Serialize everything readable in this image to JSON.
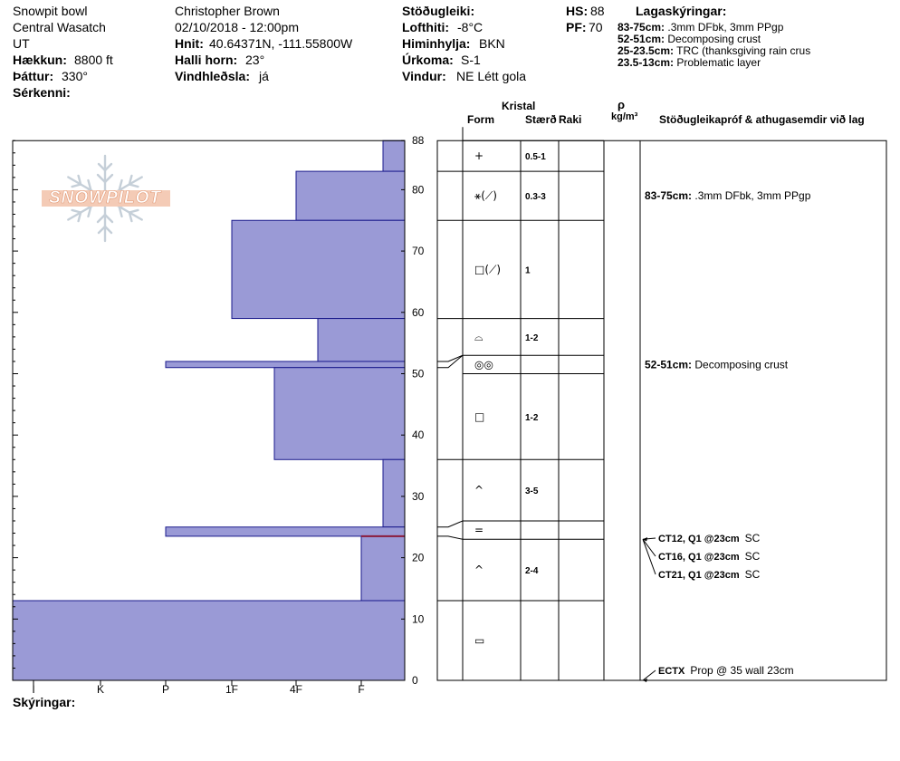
{
  "header": {
    "col1": {
      "location": "Snowpit bowl",
      "range": "Central Wasatch",
      "state": "UT",
      "elevation_label": "Hækkun:",
      "elevation_value": "8800 ft",
      "aspect_label": "Þáttur:",
      "aspect_value": "330°",
      "notes_label": "Sérkenni:"
    },
    "col2": {
      "observer": "Christopher Brown",
      "datetime": "02/10/2018 - 12:00pm",
      "coords_label": "Hnit:",
      "coords_value": "40.64371N, -111.55800W",
      "slope_label": "Halli horn:",
      "slope_value": "23°",
      "wind_loading_label": "Vindhleðsla:",
      "wind_loading_value": "já"
    },
    "col3": {
      "stability_label": "Stöðugleiki:",
      "air_temp_label": "Lofthiti:",
      "air_temp_value": "-8°C",
      "sky_label": "Himinhylja:",
      "sky_value": "BKN",
      "precip_label": "Úrkoma:",
      "precip_value": "S-1",
      "wind_label": "Vindur:",
      "wind_value": "NE Létt gola"
    },
    "col4": {
      "hs_label": "HS:",
      "hs_value": "88",
      "pf_label": "PF:",
      "pf_value": "70"
    },
    "legend": {
      "title": "Lagaskýringar:",
      "items": [
        {
          "depth": "83-75cm:",
          "text": " .3mm DFbk, 3mm PPgp"
        },
        {
          "depth": "52-51cm:",
          "text": " Decomposing crust"
        },
        {
          "depth": "25-23.5cm:",
          "text": "  TRC (thanksgiving rain crus"
        },
        {
          "depth": "23.5-13cm:",
          "text": " Problematic layer"
        }
      ]
    }
  },
  "logo_text": "SNOWPILOT",
  "footer_label": "Skýringar:",
  "table_headers": {
    "crystal": "Kristal",
    "form": "Form",
    "size": "Stærð",
    "moisture": "Raki",
    "density_symbol": "ρ",
    "density_unit": "kg/m³",
    "stability": "Stöðugleikapróf & athugasemdir við lag"
  },
  "chart_data": {
    "type": "bar",
    "orientation": "horizontal",
    "y_axis": {
      "min": 0,
      "max": 88,
      "ticks": [
        0,
        10,
        20,
        30,
        40,
        50,
        60,
        70,
        80,
        88
      ]
    },
    "x_axis": {
      "categories": [
        "I",
        "K",
        "P",
        "1F",
        "4F",
        "F"
      ],
      "direction": "hardness decreases to the right"
    },
    "layers": [
      {
        "top": 88,
        "bottom": 83,
        "hardness": "F+"
      },
      {
        "top": 83,
        "bottom": 75,
        "hardness": "4F"
      },
      {
        "top": 75,
        "bottom": 59,
        "hardness": "1F"
      },
      {
        "top": 59,
        "bottom": 52,
        "hardness": "4F+"
      },
      {
        "top": 52,
        "bottom": 51,
        "hardness": "P"
      },
      {
        "top": 51,
        "bottom": 36,
        "hardness": "4F-"
      },
      {
        "top": 36,
        "bottom": 25,
        "hardness": "F+"
      },
      {
        "top": 25,
        "bottom": 23.5,
        "hardness": "P"
      },
      {
        "top": 23.5,
        "bottom": 13,
        "hardness": "F"
      },
      {
        "top": 13,
        "bottom": 0,
        "hardness": "I-"
      }
    ],
    "failure_layer_depth": 23.5,
    "fill_color": "#9a9ad6",
    "stroke_color": "#1a1a8c",
    "failure_color": "#8b1a3a"
  },
  "crystal_rows": [
    {
      "top": 88,
      "bottom": 83,
      "form": "+",
      "size": "0.5-1"
    },
    {
      "top": 83,
      "bottom": 75,
      "form": "⚹(⟋)",
      "size": "0.3-3"
    },
    {
      "top": 75,
      "bottom": 59,
      "form": "□(⟋)",
      "size": "1"
    },
    {
      "top": 59,
      "bottom": 53,
      "form": "⌓",
      "size": "1-2"
    },
    {
      "top": 53,
      "bottom": 50,
      "form": "◎◎",
      "size": ""
    },
    {
      "top": 50,
      "bottom": 36,
      "form": "□",
      "size": "1-2"
    },
    {
      "top": 36,
      "bottom": 26,
      "form": "^",
      "size": "3-5"
    },
    {
      "top": 26,
      "bottom": 23,
      "form": "=",
      "size": ""
    },
    {
      "top": 23,
      "bottom": 13,
      "form": "^",
      "size": "2-4"
    },
    {
      "top": 13,
      "bottom": 0,
      "form": "▭",
      "size": ""
    }
  ],
  "layer_comments": [
    {
      "depth": 79,
      "label": "83-75cm:",
      "text": " .3mm DFbk, 3mm PPgp"
    },
    {
      "depth": 51.5,
      "label": "52-51cm:",
      "text": " Decomposing crust"
    }
  ],
  "stability_tests": [
    {
      "depth": 23,
      "code": "CT12, Q1 @23cm",
      "result": "SC"
    },
    {
      "depth": 23,
      "code": "CT16, Q1 @23cm",
      "result": "SC"
    },
    {
      "depth": 23,
      "code": "CT21, Q1 @23cm",
      "result": "SC"
    },
    {
      "depth": 0,
      "code": "ECTX",
      "result": "Prop @ 35 wall 23cm"
    }
  ]
}
